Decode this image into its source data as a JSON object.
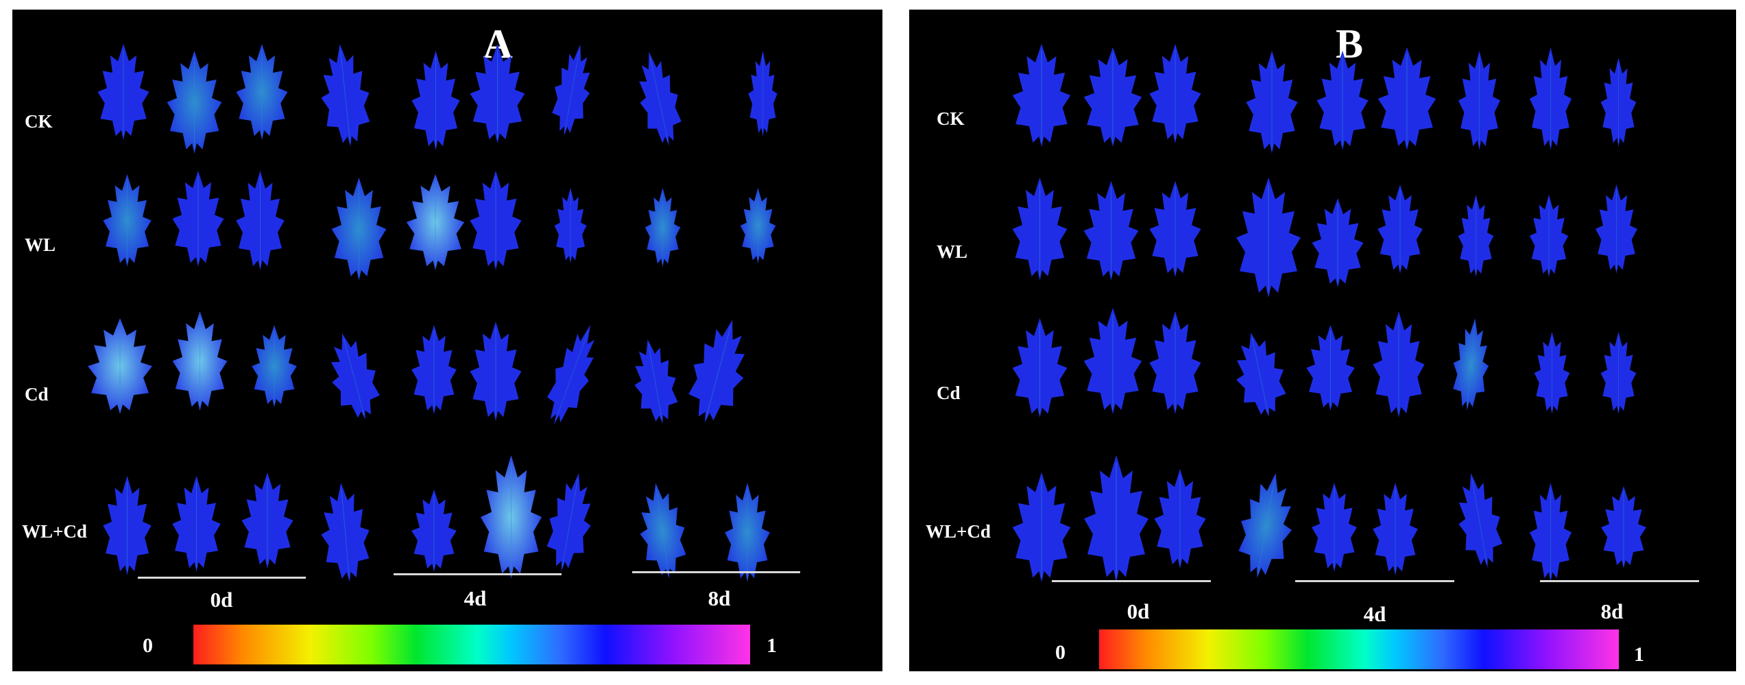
{
  "panels": [
    {
      "letter": "A",
      "rows": [
        "CK",
        "WL",
        "Cd",
        "WL+Cd"
      ],
      "days": [
        "0d",
        "4d",
        "8d"
      ],
      "colorbar": {
        "min": "0",
        "max": "1",
        "colors": [
          "#ff1e1e",
          "#ff8a00",
          "#f3f000",
          "#7dff00",
          "#00e62e",
          "#00ffc8",
          "#00c8ff",
          "#2e6bff",
          "#0f11ff",
          "#8f12ff",
          "#ff33e6"
        ]
      }
    },
    {
      "letter": "B",
      "rows": [
        "CK",
        "WL",
        "Cd",
        "WL+Cd"
      ],
      "days": [
        "0d",
        "4d",
        "8d"
      ],
      "colorbar": {
        "min": "0",
        "max": "1",
        "colors": [
          "#ff1e1e",
          "#ff8a00",
          "#f3f000",
          "#7dff00",
          "#00e62e",
          "#00ffc8",
          "#00c8ff",
          "#2e6bff",
          "#0f11ff",
          "#8f12ff",
          "#ff33e6"
        ]
      }
    }
  ],
  "colors": {
    "background": "#000000",
    "leaf_base": "#1f2ee6",
    "leaf_teal": "#2f8ecf",
    "leaf_cyan": "#6ec8e8",
    "text": "#ffffff",
    "divider": "#d9d9d9"
  }
}
